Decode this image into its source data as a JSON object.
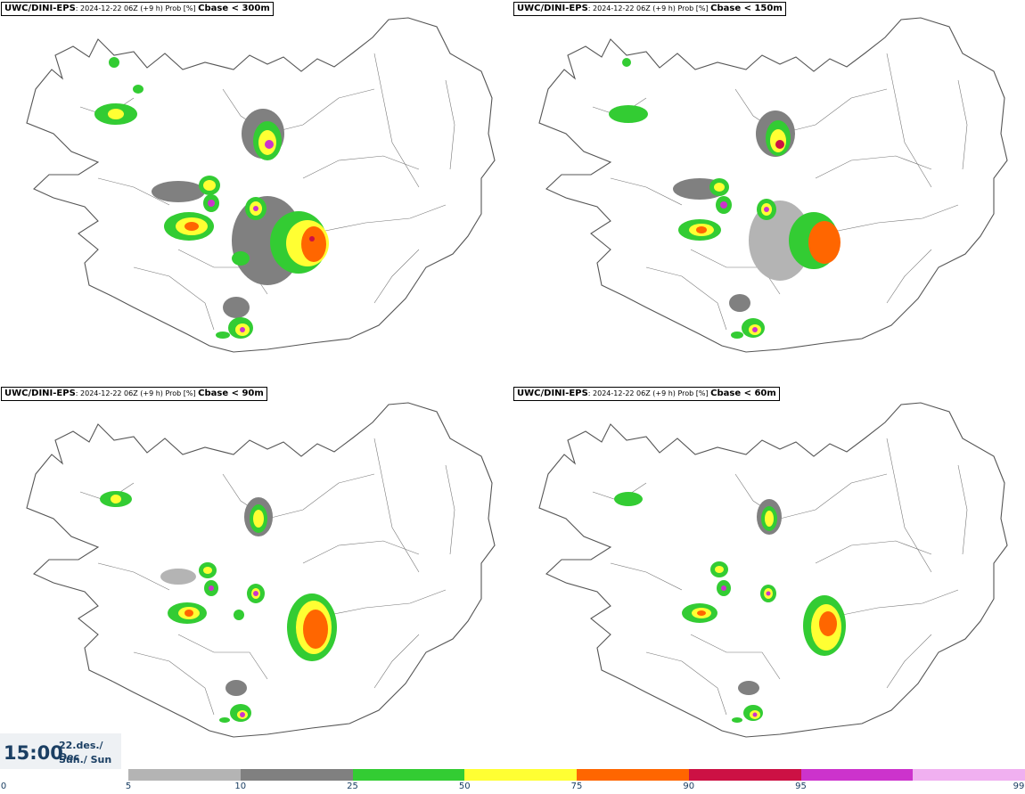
{
  "panels": [
    {
      "model": "UWC/DINI-EPS",
      "run": "2024-12-22 06Z (+9 h) Prob [%]",
      "variable": "Cbase < 300m"
    },
    {
      "model": "UWC/DINI-EPS",
      "run": "2024-12-22 06Z (+9 h) Prob [%]",
      "variable": "Cbase < 150m"
    },
    {
      "model": "UWC/DINI-EPS",
      "run": "2024-12-22 06Z (+9 h) Prob [%]",
      "variable": "Cbase < 90m"
    },
    {
      "model": "UWC/DINI-EPS",
      "run": "2024-12-22 06Z (+9 h) Prob [%]",
      "variable": "Cbase < 60m"
    }
  ],
  "valid_time": {
    "time": "15:00",
    "date_line1": "22.des./ Dec",
    "date_line2": "Sun./ Sun"
  },
  "legend": {
    "ticks": [
      "0",
      "5",
      "10",
      "25",
      "50",
      "75",
      "90",
      "95",
      "99"
    ],
    "colors": [
      "#b4b4b4",
      "#808080",
      "#33cc33",
      "#ffff33",
      "#ff6600",
      "#cc1144",
      "#cc33cc",
      "#f0b0f0"
    ]
  },
  "map_colors": {
    "coast": "#555555",
    "land": "#ffffff"
  }
}
